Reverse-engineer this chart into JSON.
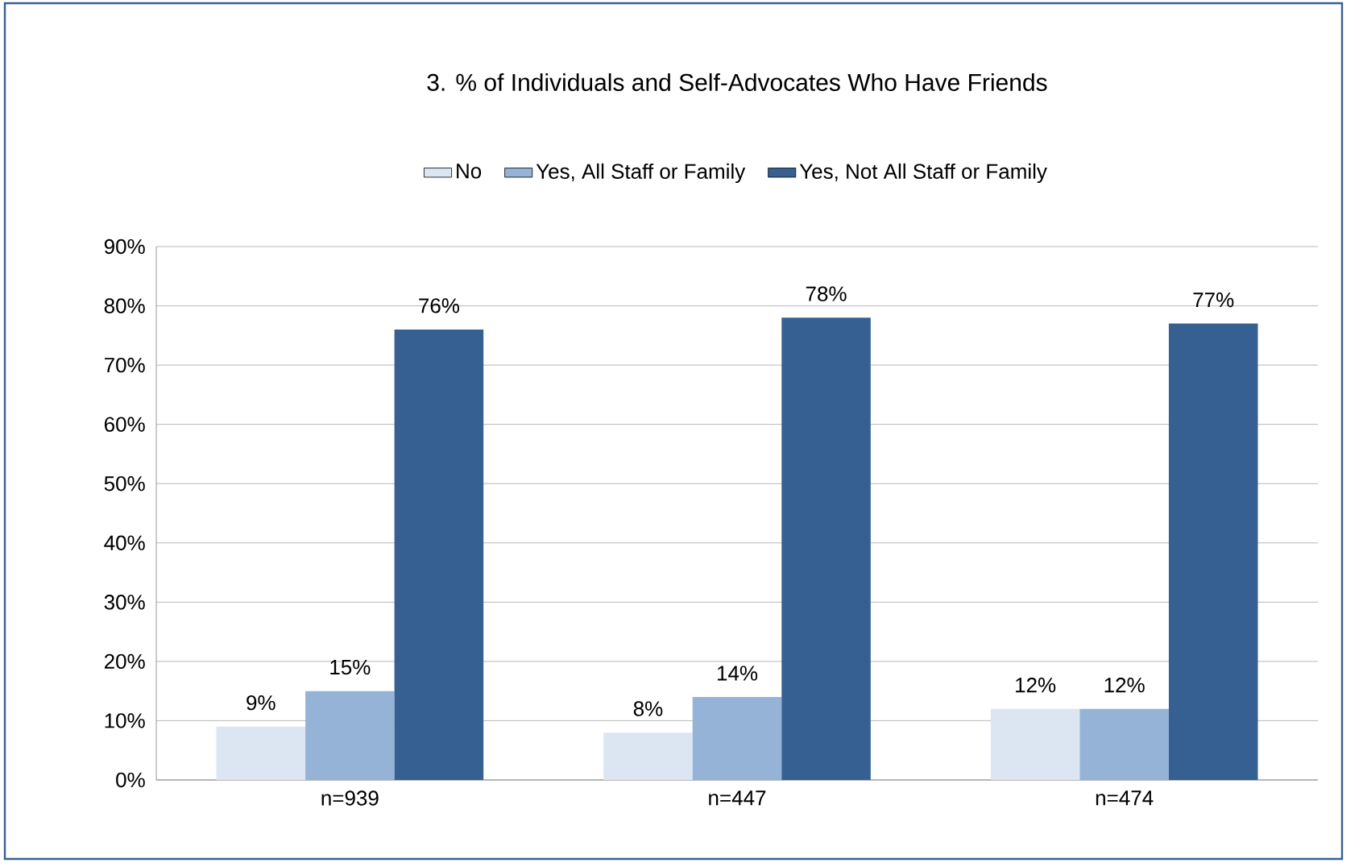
{
  "chart_data": {
    "type": "bar",
    "title": "3. % of Individuals and Self-Advocates Who Have Friends",
    "categories": [
      "n=939",
      "n=447",
      "n=474"
    ],
    "series": [
      {
        "name": "No",
        "color": "#dce6f2",
        "values": [
          9,
          8,
          12
        ],
        "value_labels": [
          "9%",
          "8%",
          "12%"
        ]
      },
      {
        "name": "Yes, All Staff or Family",
        "color": "#95b3d7",
        "values": [
          15,
          14,
          12
        ],
        "value_labels": [
          "15%",
          "14%",
          "12%"
        ]
      },
      {
        "name": "Yes, Not All Staff or Family",
        "color": "#376092",
        "values": [
          76,
          78,
          77
        ],
        "value_labels": [
          "76%",
          "78%",
          "77%"
        ]
      }
    ],
    "ylim": [
      0,
      90
    ],
    "yticks": [
      {
        "value": 0,
        "label": "0%"
      },
      {
        "value": 10,
        "label": "10%"
      },
      {
        "value": 20,
        "label": "20%"
      },
      {
        "value": 30,
        "label": "30%"
      },
      {
        "value": 40,
        "label": "40%"
      },
      {
        "value": 50,
        "label": "50%"
      },
      {
        "value": 60,
        "label": "60%"
      },
      {
        "value": 70,
        "label": "70%"
      },
      {
        "value": 80,
        "label": "80%"
      },
      {
        "value": 90,
        "label": "90%"
      }
    ],
    "grid": "y",
    "legend": "top"
  }
}
